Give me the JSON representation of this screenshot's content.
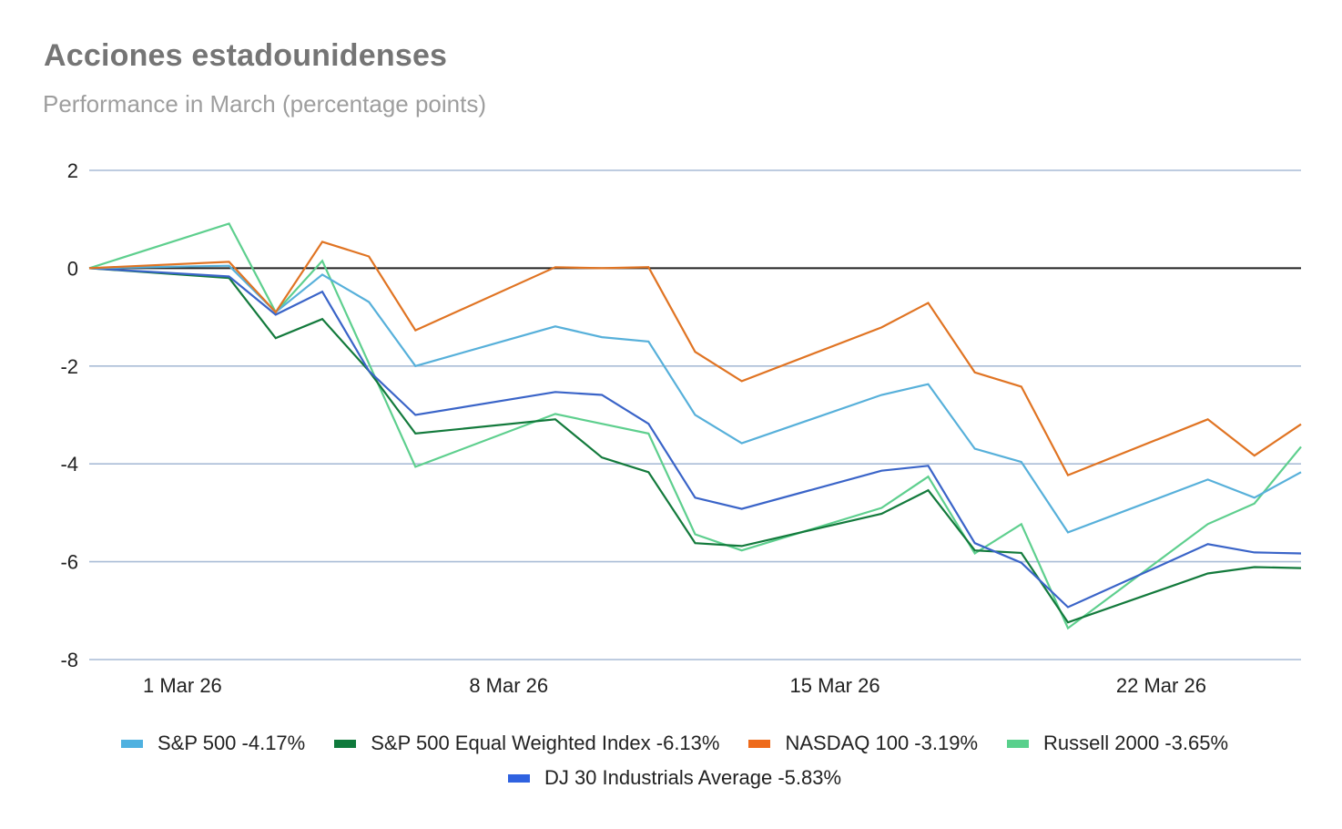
{
  "chart_data": {
    "type": "line",
    "title": "Acciones estadounidenses",
    "subtitle": "Performance in March (percentage points)",
    "xlabel": "",
    "ylabel": "",
    "ylim": [
      -8,
      2
    ],
    "yticks": [
      "2",
      "0",
      "-2",
      "-4",
      "-6",
      "-8"
    ],
    "ytick_values": [
      2,
      0,
      -2,
      -4,
      -6,
      -8
    ],
    "grid": true,
    "zero_line": true,
    "xticks": [
      {
        "label": "1 Mar 26",
        "day": 1
      },
      {
        "label": "8 Mar 26",
        "day": 8
      },
      {
        "label": "15 Mar 26",
        "day": 15
      },
      {
        "label": "22 Mar 26",
        "day": 22
      }
    ],
    "x_days": [
      -1,
      2,
      3,
      4,
      5,
      6,
      9,
      10,
      11,
      12,
      13,
      16,
      17,
      18,
      19,
      20,
      23,
      24,
      25
    ],
    "legend_position": "bottom",
    "series": [
      {
        "name": "S&P 500 -4.17%",
        "color": "#57b0da",
        "values": [
          0,
          0.05,
          -0.9,
          -0.13,
          -0.69,
          -2.0,
          -1.19,
          -1.41,
          -1.5,
          -3.0,
          -3.58,
          -2.59,
          -2.37,
          -3.69,
          -3.96,
          -5.4,
          -4.32,
          -4.69,
          -4.17
        ]
      },
      {
        "name": "S&P 500 Equal Weighted Index -6.13%",
        "color": "#137a3c",
        "values": [
          0,
          -0.2,
          -1.43,
          -1.04,
          -2.1,
          -3.38,
          -3.09,
          -3.87,
          -4.17,
          -5.62,
          -5.68,
          -5.02,
          -4.54,
          -5.77,
          -5.82,
          -7.24,
          -6.24,
          -6.11,
          -6.13
        ]
      },
      {
        "name": "NASDAQ 100 -3.19%",
        "color": "#e07423",
        "values": [
          0,
          0.13,
          -0.9,
          0.54,
          0.24,
          -1.27,
          0.02,
          0.0,
          0.02,
          -1.71,
          -2.31,
          -1.21,
          -0.71,
          -2.13,
          -2.42,
          -4.23,
          -3.09,
          -3.83,
          -3.19
        ]
      },
      {
        "name": "Russell 2000 -3.65%",
        "color": "#5ecf8e",
        "values": [
          0,
          0.91,
          -0.9,
          0.15,
          -1.95,
          -4.06,
          -2.98,
          -3.18,
          -3.38,
          -5.44,
          -5.77,
          -4.9,
          -4.26,
          -5.83,
          -5.23,
          -7.36,
          -5.23,
          -4.81,
          -3.65
        ]
      },
      {
        "name": "DJ 30 Industrials Average -5.83%",
        "color": "#3a64c8",
        "values": [
          0,
          -0.17,
          -0.95,
          -0.48,
          -2.1,
          -3.0,
          -2.53,
          -2.59,
          -3.18,
          -4.69,
          -4.92,
          -4.14,
          -4.04,
          -5.62,
          -6.02,
          -6.93,
          -5.64,
          -5.81,
          -5.83
        ]
      }
    ],
    "legend_colors": [
      "#4fb1e0",
      "#0f7a3c",
      "#ee6a1a",
      "#59d08c",
      "#2f62e0"
    ],
    "gridline_color": "#a9bcd6",
    "zero_line_color": "#222222"
  }
}
